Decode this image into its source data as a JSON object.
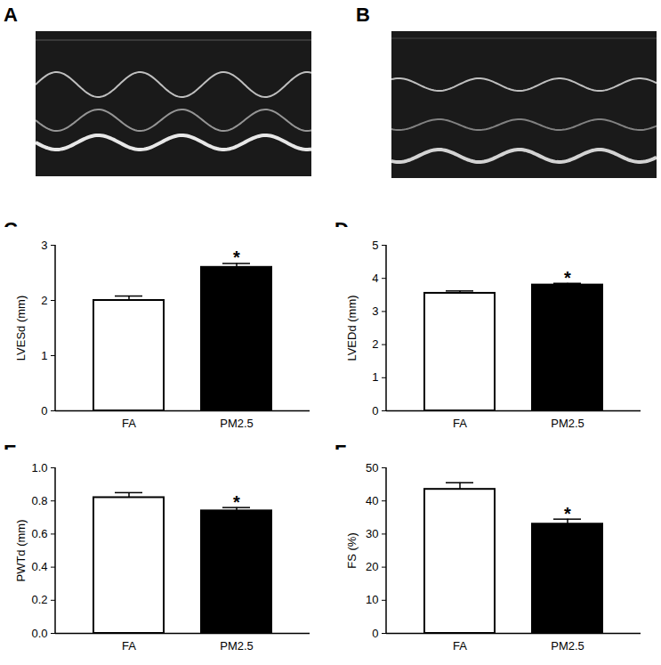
{
  "images": [
    {
      "label": "A"
    },
    {
      "label": "B"
    }
  ],
  "chart_data": [
    {
      "type": "bar",
      "label": "C",
      "ylabel": "LVESd (mm)",
      "categories": [
        "FA",
        "PM2.5"
      ],
      "values": [
        2.0,
        2.6
      ],
      "errors": [
        0.08,
        0.07
      ],
      "colors": [
        "#ffffff",
        "#000000"
      ],
      "annotations": [
        {
          "category": "PM2.5",
          "text": "*"
        }
      ],
      "ylim": [
        0,
        3
      ],
      "yticks": [
        0,
        1,
        2,
        3
      ]
    },
    {
      "type": "bar",
      "label": "D",
      "ylabel": "LVEDd (mm)",
      "categories": [
        "FA",
        "PM2.5"
      ],
      "values": [
        3.55,
        3.8
      ],
      "errors": [
        0.07,
        0.05
      ],
      "colors": [
        "#ffffff",
        "#000000"
      ],
      "annotations": [
        {
          "category": "PM2.5",
          "text": "*"
        }
      ],
      "ylim": [
        0,
        5
      ],
      "yticks": [
        0,
        1,
        2,
        3,
        4,
        5
      ]
    },
    {
      "type": "bar",
      "label": "E",
      "ylabel": "PWTd (mm)",
      "categories": [
        "FA",
        "PM2.5"
      ],
      "values": [
        0.82,
        0.74
      ],
      "errors": [
        0.03,
        0.02
      ],
      "colors": [
        "#ffffff",
        "#000000"
      ],
      "annotations": [
        {
          "category": "PM2.5",
          "text": "*"
        }
      ],
      "ylim": [
        0,
        1.0
      ],
      "yticks": [
        {
          "value": 0,
          "label": "0.0"
        },
        {
          "value": 0.2,
          "label": "0.2"
        },
        {
          "value": 0.4,
          "label": "0.4"
        },
        {
          "value": 0.6,
          "label": "0.6"
        },
        {
          "value": 0.8,
          "label": "0.8"
        },
        {
          "value": 1.0,
          "label": "1.0"
        }
      ]
    },
    {
      "type": "bar",
      "label": "F",
      "ylabel": "FS (%)",
      "categories": [
        "FA",
        "PM2.5"
      ],
      "values": [
        43.5,
        33.0
      ],
      "errors": [
        2.0,
        1.5
      ],
      "colors": [
        "#ffffff",
        "#000000"
      ],
      "annotations": [
        {
          "category": "PM2.5",
          "text": "*"
        }
      ],
      "ylim": [
        0,
        50
      ],
      "yticks": [
        0,
        10,
        20,
        30,
        40,
        50
      ]
    }
  ]
}
